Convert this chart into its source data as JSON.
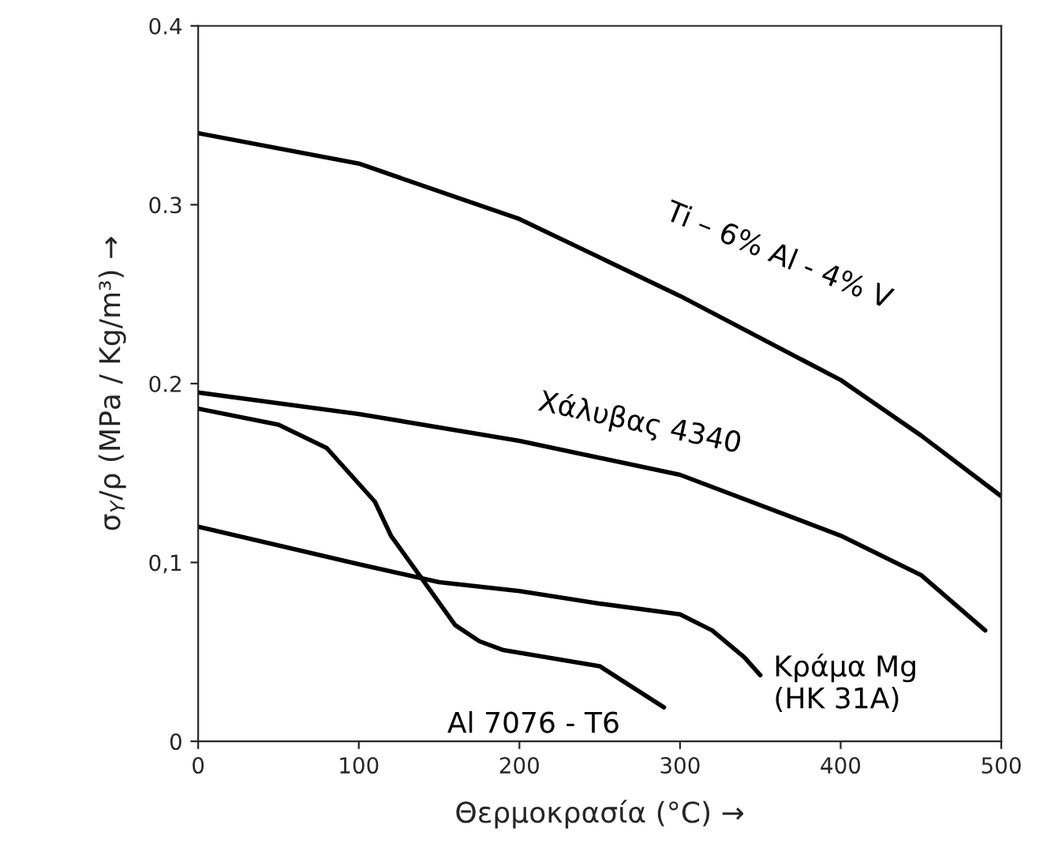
{
  "chart_data": {
    "type": "line",
    "xlabel": "Θερμοκρασία (°C) →",
    "ylabel": "σ$_{Y}$/ρ (MPa / Kg/m³) →",
    "xlim": [
      0,
      500
    ],
    "ylim": [
      0,
      0.4
    ],
    "xticks": [
      0,
      100,
      200,
      300,
      400,
      500
    ],
    "yticks": [
      0,
      {
        "value": 0.1,
        "label": "0,1"
      },
      0.2,
      0.3,
      0.4
    ],
    "grid": false,
    "legend": false,
    "line_style": "solid",
    "marker": "none",
    "series": [
      {
        "name": "Ti – 6% Al - 4% V",
        "color": "#000000",
        "x": [
          0,
          100,
          200,
          300,
          400,
          450,
          500
        ],
        "values": [
          0.34,
          0.323,
          0.292,
          0.249,
          0.202,
          0.171,
          0.137
        ]
      },
      {
        "name": "Χάλυβας 4340",
        "color": "#000000",
        "x": [
          0,
          100,
          200,
          300,
          400,
          450,
          490
        ],
        "values": [
          0.195,
          0.183,
          0.168,
          0.149,
          0.115,
          0.093,
          0.062
        ]
      },
      {
        "name": "Al 7076 - T6",
        "color": "#000000",
        "x": [
          0,
          50,
          80,
          110,
          120,
          140,
          160,
          175,
          190,
          250,
          290
        ],
        "values": [
          0.186,
          0.177,
          0.164,
          0.134,
          0.115,
          0.09,
          0.065,
          0.056,
          0.051,
          0.042,
          0.019
        ]
      },
      {
        "name": "Κράμα Mg\n(HK 31A)",
        "color": "#000000",
        "x": [
          0,
          100,
          150,
          200,
          250,
          300,
          320,
          340,
          350
        ],
        "values": [
          0.12,
          0.099,
          0.089,
          0.084,
          0.077,
          0.071,
          0.062,
          0.047,
          0.037
        ]
      }
    ]
  }
}
